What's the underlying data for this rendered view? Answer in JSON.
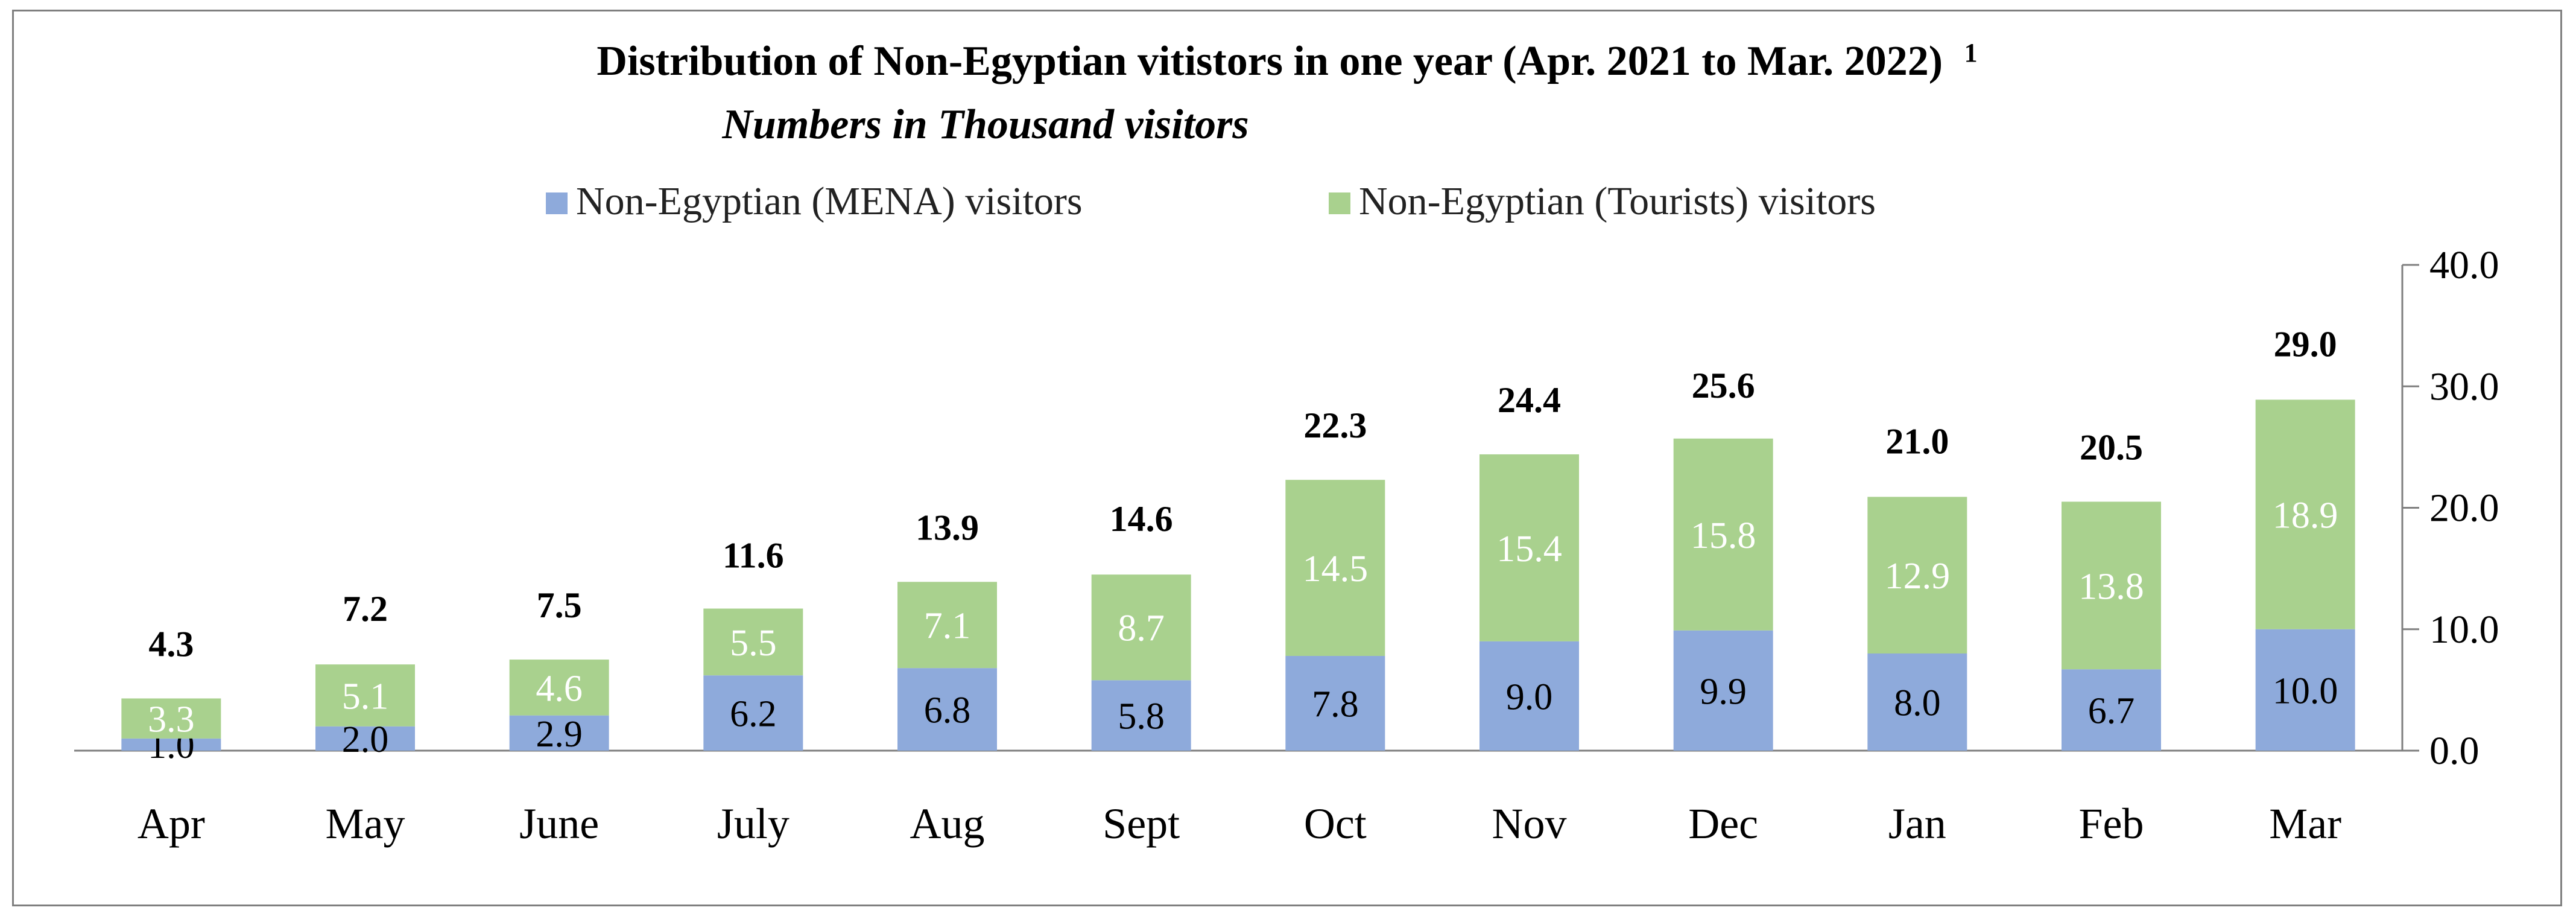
{
  "chart_data": {
    "type": "bar",
    "stacked": true,
    "title": "Distribution of Non-Egyptian vitistors in one year (Apr. 2021 to Mar. 2022)",
    "title_footnote": "1",
    "subtitle": "Numbers in Thousand visitors",
    "categories": [
      "Apr",
      "May",
      "June",
      "July",
      "Aug",
      "Sept",
      "Oct",
      "Nov",
      "Dec",
      "Jan",
      "Feb",
      "Mar"
    ],
    "series": [
      {
        "name": "Non-Egyptian (MENA) visitors",
        "color": "#8eaadb",
        "values": [
          1.0,
          2.0,
          2.9,
          6.2,
          6.8,
          5.8,
          7.8,
          9.0,
          9.9,
          8.0,
          6.7,
          10.0
        ]
      },
      {
        "name": "Non-Egyptian (Tourists) visitors",
        "color": "#a9d18e",
        "values": [
          3.3,
          5.1,
          4.6,
          5.5,
          7.1,
          8.7,
          14.5,
          15.4,
          15.8,
          12.9,
          13.8,
          18.9
        ]
      }
    ],
    "totals": [
      4.3,
      7.2,
      7.5,
      11.6,
      13.9,
      14.6,
      22.3,
      24.4,
      25.6,
      21.0,
      20.5,
      29.0
    ],
    "ylim": [
      0,
      40
    ],
    "y_ticks": [
      0,
      10,
      20,
      30,
      40
    ],
    "y_tick_labels": [
      "0.0",
      "10.0",
      "20.0",
      "30.0",
      "40.0"
    ],
    "y_axis_side": "right",
    "legend_position": "top-center",
    "grid": false,
    "xlabel": "",
    "ylabel": ""
  }
}
